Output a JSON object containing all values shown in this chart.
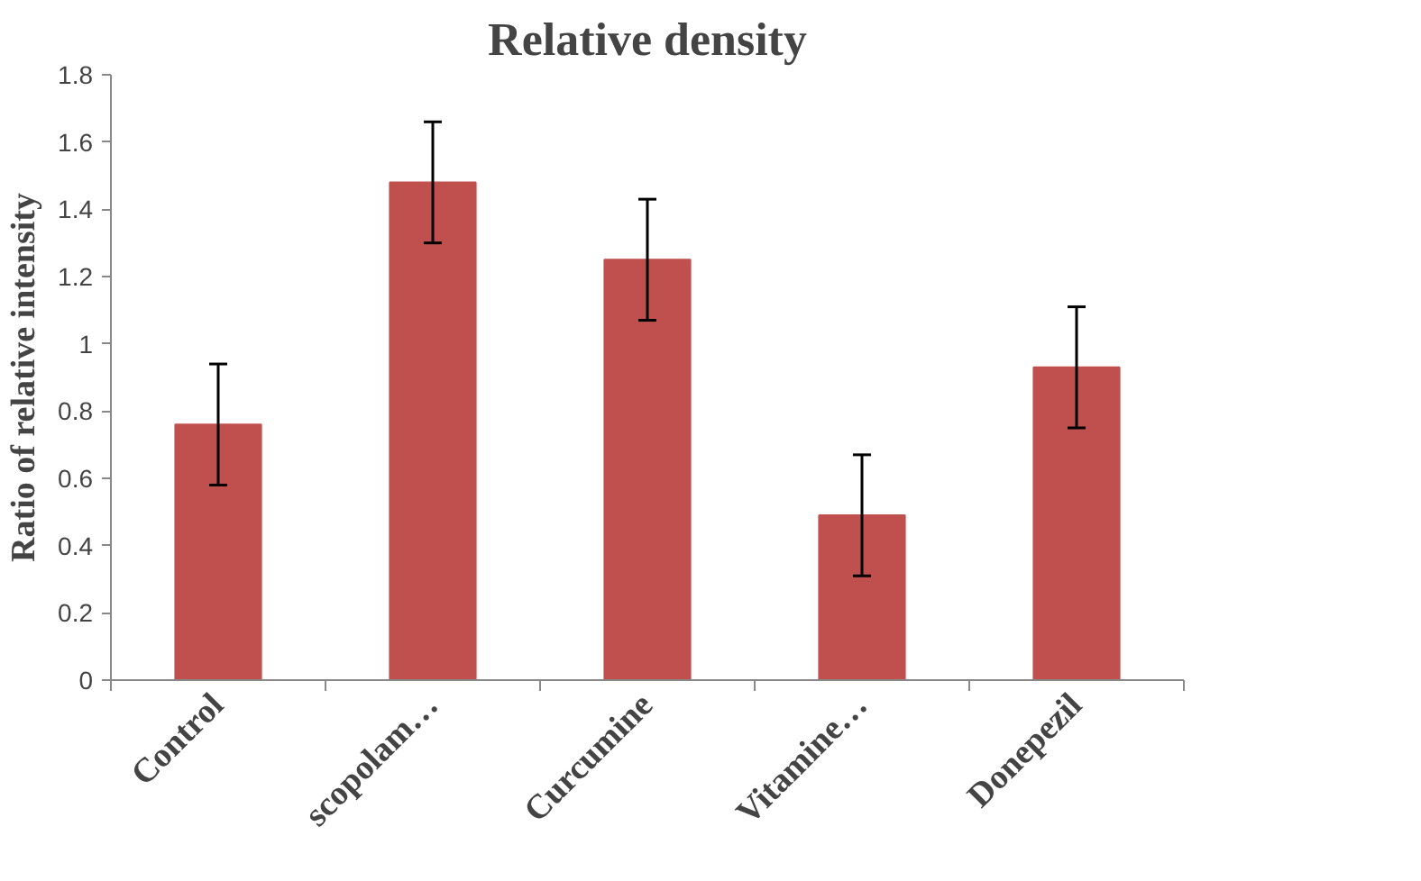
{
  "chart_data": {
    "type": "bar",
    "title": "Relative density",
    "ylabel": "Ratio of relative intensity",
    "categories": [
      "Control",
      "scopolam…",
      "Curcumine",
      "Vitamine…",
      "Donepezil"
    ],
    "values": [
      0.76,
      1.48,
      1.25,
      0.49,
      0.93
    ],
    "errors": [
      0.18,
      0.18,
      0.18,
      0.18,
      0.18
    ],
    "color": "#c0504d",
    "ylim": [
      0,
      1.8
    ],
    "yticks": [
      0,
      0.2,
      0.4,
      0.6,
      0.8,
      1,
      1.2,
      1.4,
      1.6,
      1.8
    ],
    "grid": false
  }
}
